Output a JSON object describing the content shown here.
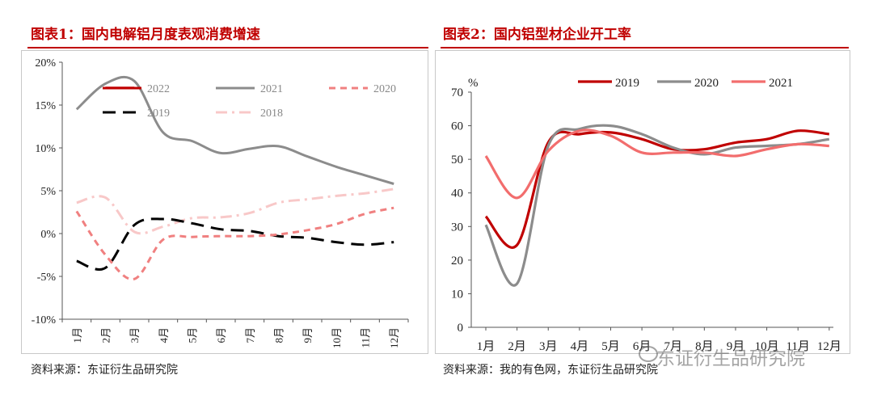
{
  "left": {
    "title": "图表1：国内电解铝月度表观消费增速",
    "source": "资料来源：东证衍生品研究院"
  },
  "right": {
    "title": "图表2：国内铝型材企业开工率",
    "source": "资料来源：我的有色网，东证衍生品研究院"
  },
  "watermark": "东证衍生品研究院",
  "chart_data": [
    {
      "type": "line",
      "categories": [
        "1月",
        "2月",
        "3月",
        "4月",
        "5月",
        "6月",
        "7月",
        "8月",
        "9月",
        "10月",
        "11月",
        "12月"
      ],
      "y_tick_labels": [
        "20%",
        "15%",
        "10%",
        "5%",
        "0%",
        "-5%",
        "-10%"
      ],
      "ylim": [
        -10,
        20
      ],
      "y_unit": "%",
      "legend_placement": "top",
      "series": [
        {
          "name": "2022",
          "color": "#c00000",
          "style": "solid",
          "x": [
            2,
            3
          ],
          "values": [
            17,
            17
          ]
        },
        {
          "name": "2021",
          "color": "#8c8c8c",
          "style": "solid",
          "x": [
            1,
            2,
            3,
            4,
            5,
            6,
            7,
            8,
            9,
            10,
            11,
            12
          ],
          "values": [
            14.5,
            17.5,
            17.8,
            11.8,
            10.8,
            9.4,
            9.9,
            10.2,
            9.0,
            7.8,
            6.8,
            5.8
          ]
        },
        {
          "name": "2020",
          "color": "#f08080",
          "style": "dash",
          "x": [
            1,
            2,
            3,
            4,
            5,
            6,
            7,
            8,
            9,
            10,
            11,
            12
          ],
          "values": [
            2.6,
            -2.5,
            -5.3,
            -0.7,
            -0.4,
            -0.3,
            -0.3,
            -0.1,
            0.4,
            1.1,
            2.3,
            3.0
          ]
        },
        {
          "name": "2019",
          "color": "#000000",
          "style": "longdash",
          "x": [
            1,
            2,
            3,
            4,
            5,
            6,
            7,
            8,
            9,
            10,
            11,
            12
          ],
          "values": [
            -3.2,
            -4.0,
            1.0,
            1.7,
            1.2,
            0.5,
            0.3,
            -0.3,
            -0.5,
            -1.0,
            -1.3,
            -1.0
          ]
        },
        {
          "name": "2018",
          "color": "#f8c8c8",
          "style": "dashdot",
          "x": [
            1,
            2,
            3,
            4,
            5,
            6,
            7,
            8,
            9,
            10,
            11,
            12
          ],
          "values": [
            3.6,
            4.2,
            0.2,
            0.8,
            1.8,
            1.9,
            2.4,
            3.6,
            4.0,
            4.4,
            4.7,
            5.2
          ]
        }
      ]
    },
    {
      "type": "line",
      "categories": [
        "1月",
        "2月",
        "3月",
        "4月",
        "5月",
        "6月",
        "7月",
        "8月",
        "9月",
        "10月",
        "11月",
        "12月"
      ],
      "y_tick_labels": [
        "0",
        "10",
        "20",
        "30",
        "40",
        "50",
        "60",
        "70"
      ],
      "ylim": [
        0,
        70
      ],
      "y_unit": "%",
      "legend_placement": "top",
      "series": [
        {
          "name": "2019",
          "color": "#c00000",
          "values": [
            33,
            24.5,
            55,
            57.5,
            58,
            56,
            53,
            53,
            55,
            56,
            58.5,
            57.5
          ]
        },
        {
          "name": "2020",
          "color": "#8c8c8c",
          "values": [
            30.5,
            13,
            54,
            59,
            60,
            57.5,
            53.5,
            51.5,
            53.5,
            54,
            54.5,
            56
          ]
        },
        {
          "name": "2021",
          "color": "#f26d6d",
          "values": [
            51,
            38.5,
            52.5,
            58.5,
            57,
            52,
            52,
            52,
            51,
            53,
            54.5,
            54
          ]
        }
      ]
    }
  ]
}
